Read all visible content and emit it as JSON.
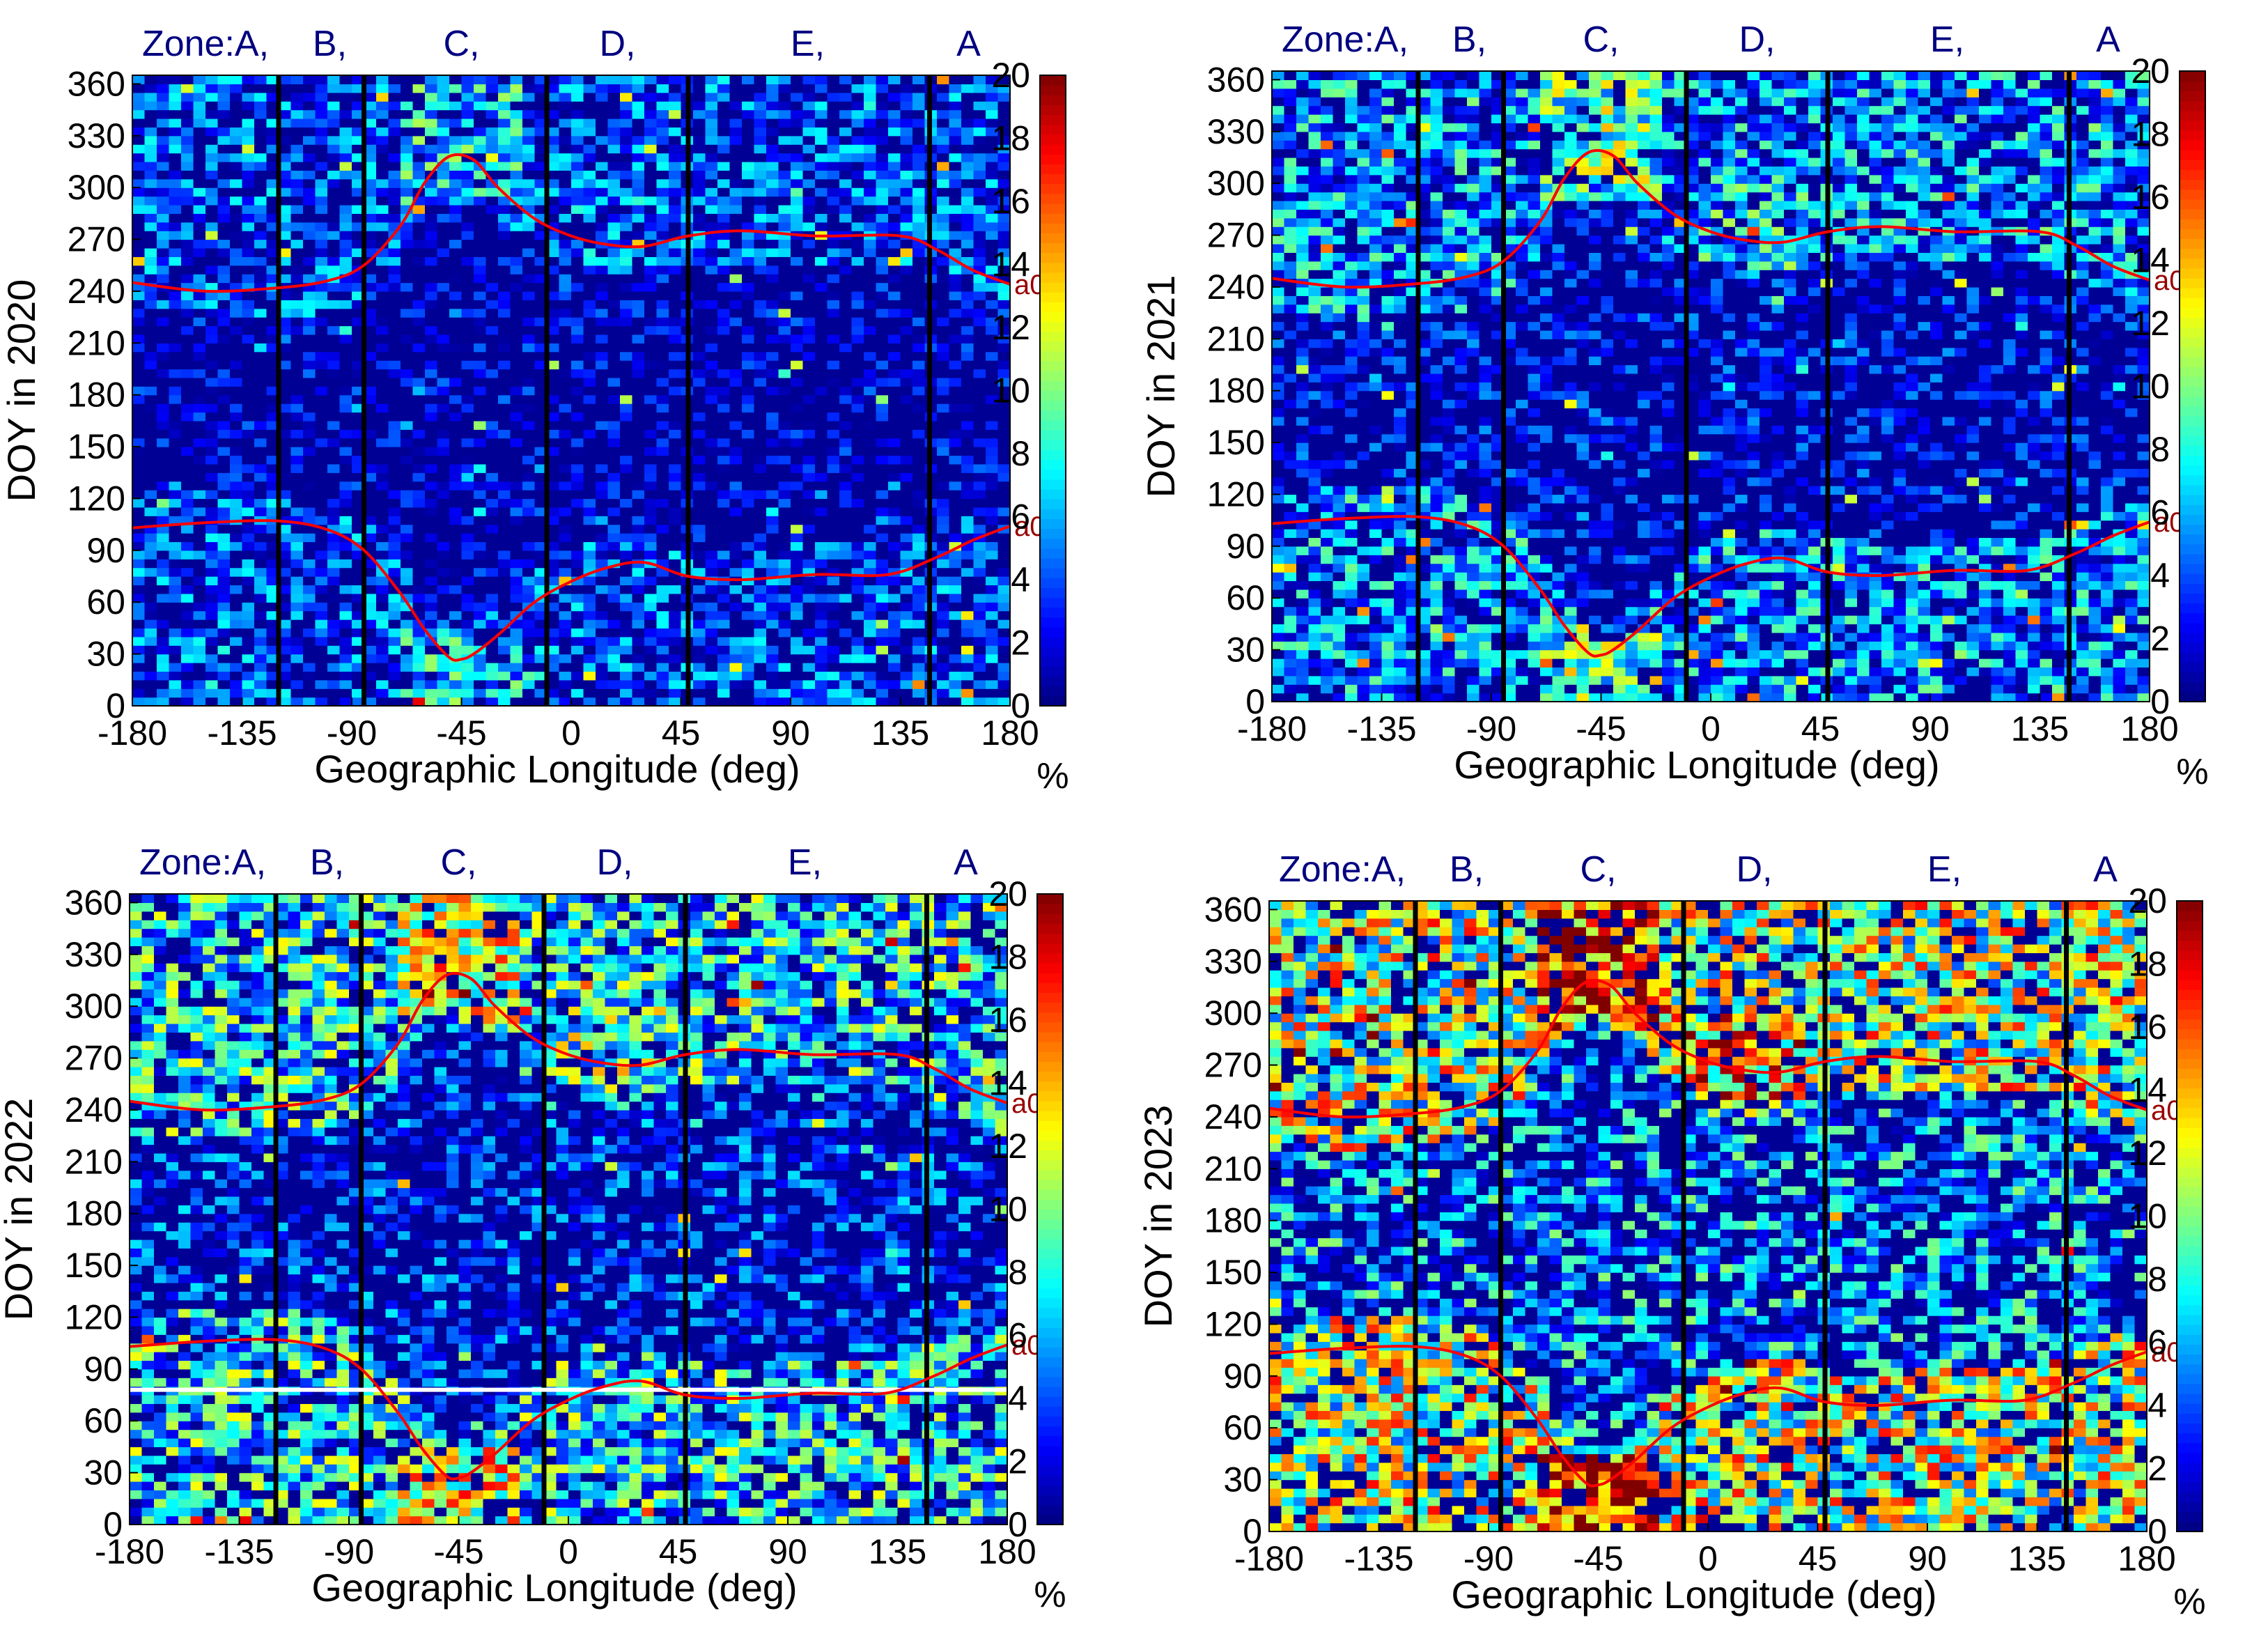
{
  "figure": {
    "zone_prefix": "Zone:",
    "marker_label": "a0",
    "unit_label": "%"
  },
  "colors": {
    "zone_label": "#000080",
    "zone_line": "#000000",
    "a0_curve": "#ff0000",
    "a0_label": "#990000",
    "white_line": "#ffffff"
  },
  "chart_data": [
    {
      "id": "2020",
      "type": "heatmap",
      "title": "",
      "xlabel": "Geographic Longitude (deg)",
      "ylabel": "DOY in 2020",
      "xlim": [
        -180,
        180
      ],
      "ylim": [
        0,
        365
      ],
      "xticks": [
        -180,
        -135,
        -90,
        -45,
        0,
        45,
        90,
        135,
        180
      ],
      "yticks": [
        0,
        30,
        60,
        90,
        120,
        150,
        180,
        210,
        240,
        270,
        300,
        330,
        360
      ],
      "colorbar": {
        "label": "%",
        "min": 0,
        "max": 20,
        "ticks": [
          0,
          2,
          4,
          6,
          8,
          10,
          12,
          14,
          16,
          18,
          20
        ]
      },
      "intensity": 0.18,
      "zone_boundaries": [
        -120,
        -85,
        -10,
        48,
        147
      ],
      "zones": [
        {
          "label": "Zone:A,",
          "x": -150
        },
        {
          "label": "B,",
          "x": -99
        },
        {
          "label": "C,",
          "x": -45
        },
        {
          "label": "D,",
          "x": 19
        },
        {
          "label": "E,",
          "x": 97
        },
        {
          "label": "A",
          "x": 163
        }
      ],
      "a0_upper": {
        "x": [
          -180,
          -150,
          -120,
          -100,
          -85,
          -70,
          -60,
          -50,
          -40,
          -30,
          -15,
          0,
          15,
          30,
          48,
          70,
          100,
          135,
          150,
          165,
          180
        ],
        "y": [
          245,
          240,
          242,
          246,
          255,
          278,
          303,
          318,
          316,
          300,
          282,
          272,
          267,
          266,
          272,
          275,
          272,
          272,
          264,
          252,
          244
        ]
      },
      "a0_lower": {
        "x": [
          -180,
          -150,
          -120,
          -100,
          -85,
          -70,
          -60,
          -50,
          -45,
          -40,
          -30,
          -15,
          0,
          15,
          30,
          48,
          70,
          100,
          130,
          150,
          165,
          180
        ],
        "y": [
          103,
          106,
          107,
          102,
          90,
          65,
          44,
          28,
          27,
          30,
          41,
          60,
          72,
          80,
          83,
          75,
          73,
          76,
          76,
          86,
          96,
          104
        ]
      },
      "white_line_doy": null
    },
    {
      "id": "2021",
      "type": "heatmap",
      "title": "",
      "xlabel": "Geographic Longitude (deg)",
      "ylabel": "DOY in 2021",
      "xlim": [
        -180,
        180
      ],
      "ylim": [
        0,
        365
      ],
      "xticks": [
        -180,
        -135,
        -90,
        -45,
        0,
        45,
        90,
        135,
        180
      ],
      "yticks": [
        0,
        30,
        60,
        90,
        120,
        150,
        180,
        210,
        240,
        270,
        300,
        330,
        360
      ],
      "colorbar": {
        "label": "%",
        "min": 0,
        "max": 20,
        "ticks": [
          0,
          2,
          4,
          6,
          8,
          10,
          12,
          14,
          16,
          18,
          20
        ]
      },
      "intensity": 0.32,
      "zone_boundaries": [
        -120,
        -85,
        -10,
        48,
        147
      ],
      "zones": [
        {
          "label": "Zone:A,",
          "x": -150
        },
        {
          "label": "B,",
          "x": -99
        },
        {
          "label": "C,",
          "x": -45
        },
        {
          "label": "D,",
          "x": 19
        },
        {
          "label": "E,",
          "x": 97
        },
        {
          "label": "A",
          "x": 163
        }
      ],
      "a0_upper": {
        "x": [
          -180,
          -150,
          -120,
          -100,
          -85,
          -70,
          -60,
          -50,
          -40,
          -30,
          -15,
          0,
          15,
          30,
          48,
          70,
          100,
          135,
          150,
          165,
          180
        ],
        "y": [
          245,
          240,
          242,
          246,
          255,
          278,
          303,
          318,
          316,
          300,
          282,
          272,
          267,
          266,
          272,
          275,
          272,
          272,
          264,
          252,
          244
        ]
      },
      "a0_lower": {
        "x": [
          -180,
          -150,
          -120,
          -100,
          -85,
          -70,
          -60,
          -50,
          -45,
          -40,
          -30,
          -15,
          0,
          15,
          30,
          48,
          70,
          100,
          130,
          150,
          165,
          180
        ],
        "y": [
          103,
          106,
          107,
          102,
          90,
          65,
          44,
          28,
          27,
          30,
          41,
          60,
          72,
          80,
          83,
          75,
          73,
          76,
          76,
          86,
          96,
          104
        ]
      },
      "white_line_doy": null
    },
    {
      "id": "2022",
      "type": "heatmap",
      "title": "",
      "xlabel": "Geographic Longitude (deg)",
      "ylabel": "DOY in 2022",
      "xlim": [
        -180,
        180
      ],
      "ylim": [
        0,
        365
      ],
      "xticks": [
        -180,
        -135,
        -90,
        -45,
        0,
        45,
        90,
        135,
        180
      ],
      "yticks": [
        0,
        30,
        60,
        90,
        120,
        150,
        180,
        210,
        240,
        270,
        300,
        330,
        360
      ],
      "colorbar": {
        "label": "%",
        "min": 0,
        "max": 20,
        "ticks": [
          0,
          2,
          4,
          6,
          8,
          10,
          12,
          14,
          16,
          18,
          20
        ]
      },
      "intensity": 0.5,
      "zone_boundaries": [
        -120,
        -85,
        -10,
        48,
        147
      ],
      "zones": [
        {
          "label": "Zone:A,",
          "x": -150
        },
        {
          "label": "B,",
          "x": -99
        },
        {
          "label": "C,",
          "x": -45
        },
        {
          "label": "D,",
          "x": 19
        },
        {
          "label": "E,",
          "x": 97
        },
        {
          "label": "A",
          "x": 163
        }
      ],
      "a0_upper": {
        "x": [
          -180,
          -150,
          -120,
          -100,
          -85,
          -70,
          -60,
          -50,
          -40,
          -30,
          -15,
          0,
          15,
          30,
          48,
          70,
          100,
          135,
          150,
          165,
          180
        ],
        "y": [
          245,
          240,
          242,
          246,
          255,
          278,
          303,
          318,
          316,
          300,
          282,
          272,
          267,
          266,
          272,
          275,
          272,
          272,
          264,
          252,
          244
        ]
      },
      "a0_lower": {
        "x": [
          -180,
          -150,
          -120,
          -100,
          -85,
          -70,
          -60,
          -50,
          -45,
          -40,
          -30,
          -15,
          0,
          15,
          30,
          48,
          70,
          100,
          130,
          150,
          165,
          180
        ],
        "y": [
          103,
          106,
          107,
          102,
          90,
          65,
          44,
          28,
          27,
          30,
          41,
          60,
          72,
          80,
          83,
          75,
          73,
          76,
          76,
          86,
          96,
          104
        ]
      },
      "white_line_doy": 78
    },
    {
      "id": "2023",
      "type": "heatmap",
      "title": "",
      "xlabel": "Geographic Longitude (deg)",
      "ylabel": "DOY in 2023",
      "xlim": [
        -180,
        180
      ],
      "ylim": [
        0,
        365
      ],
      "xticks": [
        -180,
        -135,
        -90,
        -45,
        0,
        45,
        90,
        135,
        180
      ],
      "yticks": [
        0,
        30,
        60,
        90,
        120,
        150,
        180,
        210,
        240,
        270,
        300,
        330,
        360
      ],
      "colorbar": {
        "label": "%",
        "min": 0,
        "max": 20,
        "ticks": [
          0,
          2,
          4,
          6,
          8,
          10,
          12,
          14,
          16,
          18,
          20
        ]
      },
      "intensity": 0.82,
      "zone_boundaries": [
        -120,
        -85,
        -10,
        48,
        147
      ],
      "zones": [
        {
          "label": "Zone:A,",
          "x": -150
        },
        {
          "label": "B,",
          "x": -99
        },
        {
          "label": "C,",
          "x": -45
        },
        {
          "label": "D,",
          "x": 19
        },
        {
          "label": "E,",
          "x": 97
        },
        {
          "label": "A",
          "x": 163
        }
      ],
      "a0_upper": {
        "x": [
          -180,
          -150,
          -120,
          -100,
          -85,
          -70,
          -60,
          -50,
          -40,
          -30,
          -15,
          0,
          15,
          30,
          48,
          70,
          100,
          135,
          150,
          165,
          180
        ],
        "y": [
          245,
          240,
          242,
          246,
          255,
          278,
          303,
          318,
          316,
          300,
          282,
          272,
          267,
          266,
          272,
          275,
          272,
          272,
          264,
          252,
          244
        ]
      },
      "a0_lower": {
        "x": [
          -180,
          -150,
          -120,
          -100,
          -85,
          -70,
          -60,
          -50,
          -45,
          -40,
          -30,
          -15,
          0,
          15,
          30,
          48,
          70,
          100,
          130,
          150,
          165,
          180
        ],
        "y": [
          103,
          106,
          107,
          102,
          90,
          65,
          44,
          28,
          27,
          30,
          41,
          60,
          72,
          80,
          83,
          75,
          73,
          76,
          76,
          86,
          96,
          104
        ]
      },
      "white_line_doy": null
    }
  ]
}
